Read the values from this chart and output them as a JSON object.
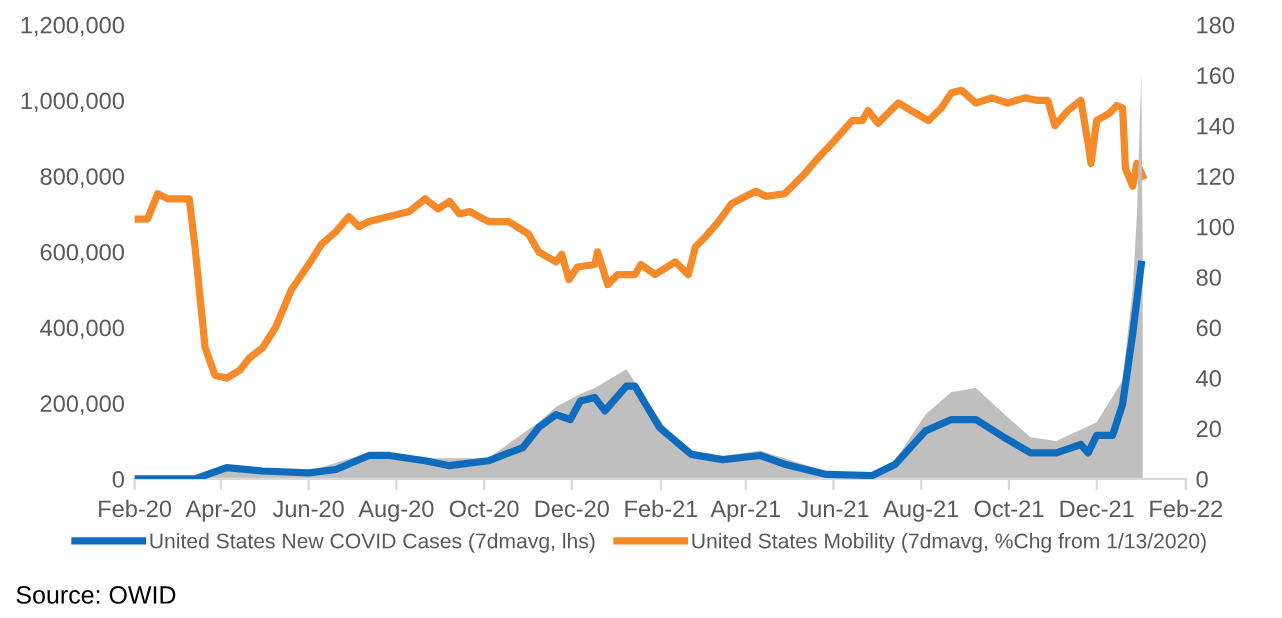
{
  "chart_data": {
    "type": "line",
    "xlim": [
      "2020-02-01",
      "2022-02-01"
    ],
    "xticks": [
      {
        "value": "2020-02-01",
        "label": "Feb-20"
      },
      {
        "value": "2020-04-01",
        "label": "Apr-20"
      },
      {
        "value": "2020-06-01",
        "label": "Jun-20"
      },
      {
        "value": "2020-08-01",
        "label": "Aug-20"
      },
      {
        "value": "2020-10-01",
        "label": "Oct-20"
      },
      {
        "value": "2020-12-01",
        "label": "Dec-20"
      },
      {
        "value": "2021-02-01",
        "label": "Feb-21"
      },
      {
        "value": "2021-04-01",
        "label": "Apr-21"
      },
      {
        "value": "2021-06-01",
        "label": "Jun-21"
      },
      {
        "value": "2021-08-01",
        "label": "Aug-21"
      },
      {
        "value": "2021-10-01",
        "label": "Oct-21"
      },
      {
        "value": "2021-12-01",
        "label": "Dec-21"
      },
      {
        "value": "2022-02-01",
        "label": "Feb-22"
      }
    ],
    "ylim": [
      0,
      1200000
    ],
    "yticks": [
      {
        "value": 0,
        "label": "0"
      },
      {
        "value": 200000,
        "label": "200,000"
      },
      {
        "value": 400000,
        "label": "400,000"
      },
      {
        "value": 600000,
        "label": "600,000"
      },
      {
        "value": 800000,
        "label": "800,000"
      },
      {
        "value": 1000000,
        "label": "1,000,000"
      },
      {
        "value": 1200000,
        "label": "1,200,000"
      }
    ],
    "y2lim": [
      0,
      180
    ],
    "y2ticks": [
      0,
      20,
      40,
      60,
      80,
      100,
      120,
      140,
      160,
      180
    ],
    "grid": false,
    "legend": "bottom",
    "marker": "none",
    "line_style": "solid",
    "annotations": [
      "Source: OWID"
    ],
    "series": [
      {
        "type": "area",
        "color": "#bfbfbf",
        "x": [
          "2020-02-01",
          "2020-03-14",
          "2020-04-05",
          "2020-04-30",
          "2020-06-01",
          "2020-07-13",
          "2020-08-21",
          "2020-10-04",
          "2020-11-08",
          "2020-11-20",
          "2020-12-07",
          "2020-12-17",
          "2021-01-08",
          "2021-01-20",
          "2021-02-14",
          "2021-03-16",
          "2021-04-11",
          "2021-05-27",
          "2021-06-28",
          "2021-07-14",
          "2021-08-04",
          "2021-08-22",
          "2021-09-08",
          "2021-09-28",
          "2021-10-16",
          "2021-11-03",
          "2021-12-01",
          "2021-12-19",
          "2021-12-26",
          "2021-12-29",
          "2022-01-01",
          "2022-01-02"
        ],
        "values": [
          0,
          0,
          32000,
          25000,
          20000,
          70000,
          55000,
          55000,
          150000,
          190000,
          225000,
          240000,
          290000,
          220000,
          80000,
          60000,
          75000,
          20000,
          12000,
          50000,
          170000,
          230000,
          240000,
          170000,
          110000,
          100000,
          150000,
          260000,
          500000,
          700000,
          1070000,
          600000
        ]
      },
      {
        "name": "United States New COVID Cases (7dmavg, lhs)",
        "color": "#0f6cbd",
        "x": [
          "2020-02-01",
          "2020-03-14",
          "2020-04-05",
          "2020-04-30",
          "2020-06-01",
          "2020-06-20",
          "2020-07-13",
          "2020-07-27",
          "2020-08-21",
          "2020-09-07",
          "2020-10-04",
          "2020-10-28",
          "2020-11-08",
          "2020-11-20",
          "2020-11-30",
          "2020-12-07",
          "2020-12-17",
          "2020-12-24",
          "2021-01-08",
          "2021-01-14",
          "2021-01-20",
          "2021-01-31",
          "2021-02-22",
          "2021-03-16",
          "2021-04-11",
          "2021-04-28",
          "2021-05-27",
          "2021-06-28",
          "2021-07-14",
          "2021-08-04",
          "2021-08-22",
          "2021-09-08",
          "2021-09-28",
          "2021-10-16",
          "2021-11-03",
          "2021-11-20",
          "2021-11-25",
          "2021-12-01",
          "2021-12-12",
          "2021-12-19",
          "2021-12-26",
          "2022-01-01"
        ],
        "values": [
          0,
          0,
          30000,
          21000,
          16000,
          25000,
          62000,
          62000,
          48000,
          35000,
          48000,
          83000,
          136000,
          170000,
          157000,
          206000,
          215000,
          180000,
          245000,
          245000,
          206000,
          136000,
          65000,
          51000,
          62000,
          39000,
          12000,
          9000,
          39000,
          127000,
          157000,
          157000,
          109000,
          69000,
          69000,
          91000,
          69000,
          115000,
          115000,
          197000,
          382000,
          567000
        ]
      },
      {
        "name": "United States Mobility (7dmavg, %Chg from 1/13/2020)",
        "color": "#f58a2a",
        "axis": "y2",
        "x": [
          "2020-02-01",
          "2020-02-10",
          "2020-02-17",
          "2020-02-24",
          "2020-03-10",
          "2020-03-14",
          "2020-03-21",
          "2020-03-28",
          "2020-04-05",
          "2020-04-14",
          "2020-04-21",
          "2020-04-30",
          "2020-05-09",
          "2020-05-20",
          "2020-06-01",
          "2020-06-10",
          "2020-06-20",
          "2020-06-29",
          "2020-07-06",
          "2020-07-13",
          "2020-07-27",
          "2020-08-10",
          "2020-08-21",
          "2020-08-30",
          "2020-09-07",
          "2020-09-14",
          "2020-09-21",
          "2020-10-04",
          "2020-10-18",
          "2020-11-01",
          "2020-11-08",
          "2020-11-20",
          "2020-11-24",
          "2020-11-29",
          "2020-12-05",
          "2020-12-17",
          "2020-12-19",
          "2020-12-26",
          "2021-01-02",
          "2021-01-14",
          "2021-01-18",
          "2021-01-28",
          "2021-02-11",
          "2021-02-20",
          "2021-02-25",
          "2021-03-04",
          "2021-03-13",
          "2021-03-22",
          "2021-04-01",
          "2021-04-08",
          "2021-04-15",
          "2021-04-28",
          "2021-05-05",
          "2021-05-12",
          "2021-05-21",
          "2021-05-31",
          "2021-06-14",
          "2021-06-21",
          "2021-06-25",
          "2021-07-02",
          "2021-07-16",
          "2021-07-25",
          "2021-08-06",
          "2021-08-15",
          "2021-08-22",
          "2021-08-29",
          "2021-09-08",
          "2021-09-19",
          "2021-09-30",
          "2021-10-12",
          "2021-10-21",
          "2021-10-28",
          "2021-11-02",
          "2021-11-11",
          "2021-11-20",
          "2021-11-25",
          "2021-11-27",
          "2021-12-01",
          "2021-12-10",
          "2021-12-15",
          "2021-12-19",
          "2021-12-21",
          "2021-12-26",
          "2021-12-29",
          "2022-01-02"
        ],
        "values": [
          103,
          103,
          113,
          111,
          111,
          92,
          52,
          41,
          40,
          43,
          48,
          52,
          60,
          75,
          85,
          93,
          98,
          104,
          100,
          102,
          104,
          106,
          111,
          107,
          110,
          105,
          106,
          102,
          102,
          97,
          90,
          86,
          89,
          79,
          84,
          85,
          90,
          77,
          81,
          81,
          85,
          81,
          86,
          81,
          92,
          96,
          102,
          109,
          112,
          114,
          112,
          113,
          117,
          121,
          127,
          133,
          142,
          142,
          146,
          141,
          149,
          146,
          142,
          147,
          153,
          154,
          149,
          151,
          149,
          151,
          150,
          150,
          140,
          146,
          150,
          133,
          125,
          142,
          145,
          148,
          147,
          123,
          116,
          125,
          120
        ]
      }
    ]
  }
}
